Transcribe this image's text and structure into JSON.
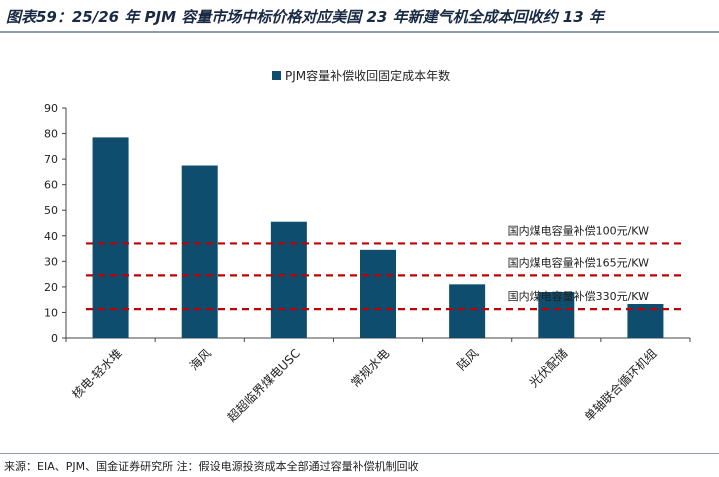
{
  "header": {
    "title": "图表59：25/26 年 PJM 容量市场中标价格对应美国 23 年新建气机全成本回收约 13 年"
  },
  "footer": {
    "source": "来源：EIA、PJM、国金证券研究所 注：假设电源投资成本全部通过容量补偿机制回收"
  },
  "chart_data": {
    "type": "bar",
    "categories": [
      "核电-轻水堆",
      "海风",
      "超超临界煤电USC",
      "常规水电",
      "陆风",
      "光伏配储",
      "单轴联合循环机组"
    ],
    "series": [
      {
        "name": "PJM容量补偿收回固定成本年数",
        "values": [
          78.5,
          67.5,
          45.5,
          34.5,
          21,
          18,
          13.3
        ]
      }
    ],
    "ylim": [
      0,
      90
    ],
    "yticks": [
      0,
      10,
      20,
      30,
      40,
      50,
      60,
      70,
      80,
      90
    ],
    "xlabel": "",
    "ylabel": "",
    "legend_position": "top-center",
    "grid": false,
    "bar_color": "#0e4d6e",
    "reference_lines": [
      {
        "label": "国内煤电容量补偿100元/KW",
        "value": 37
      },
      {
        "label": "国内煤电容量补偿165元/KW",
        "value": 24.5
      },
      {
        "label": "国内煤电容量补偿330元/KW",
        "value": 11.3
      }
    ],
    "reference_line_color": "#c00000"
  }
}
